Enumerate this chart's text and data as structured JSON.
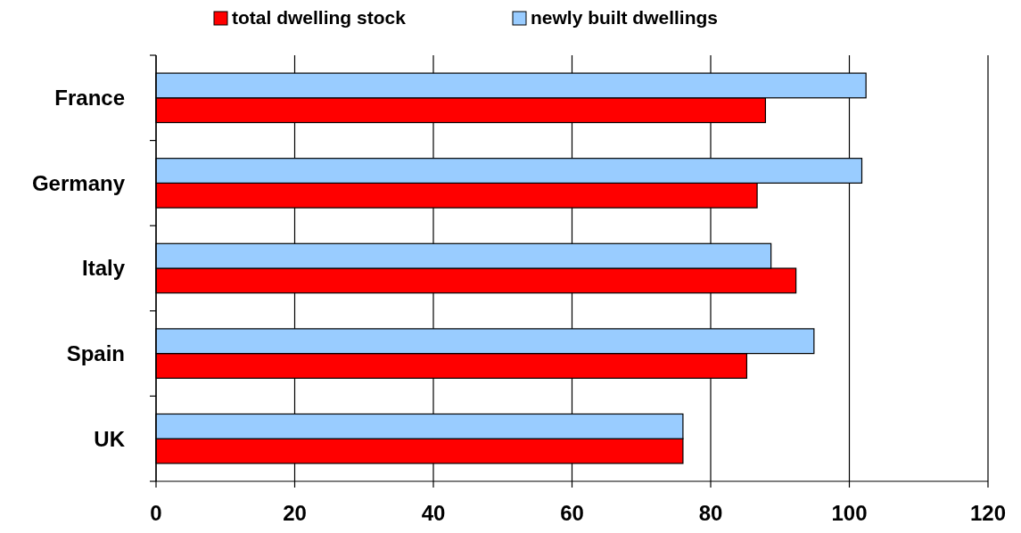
{
  "chart_data": {
    "type": "bar",
    "orientation": "horizontal",
    "categories": [
      "France",
      "Germany",
      "Italy",
      "Spain",
      "UK"
    ],
    "series": [
      {
        "name": "total dwelling stock",
        "color": "#ff0000",
        "values": [
          87.9,
          86.7,
          92.3,
          85.2,
          76.0
        ]
      },
      {
        "name": "newly built dwellings",
        "color": "#99ccff",
        "values": [
          102.4,
          101.8,
          88.7,
          94.9,
          76.0
        ]
      }
    ],
    "xlim": [
      0,
      120
    ],
    "xticks": [
      0,
      20,
      40,
      60,
      80,
      100,
      120
    ],
    "grid": "x",
    "legend": "top"
  }
}
